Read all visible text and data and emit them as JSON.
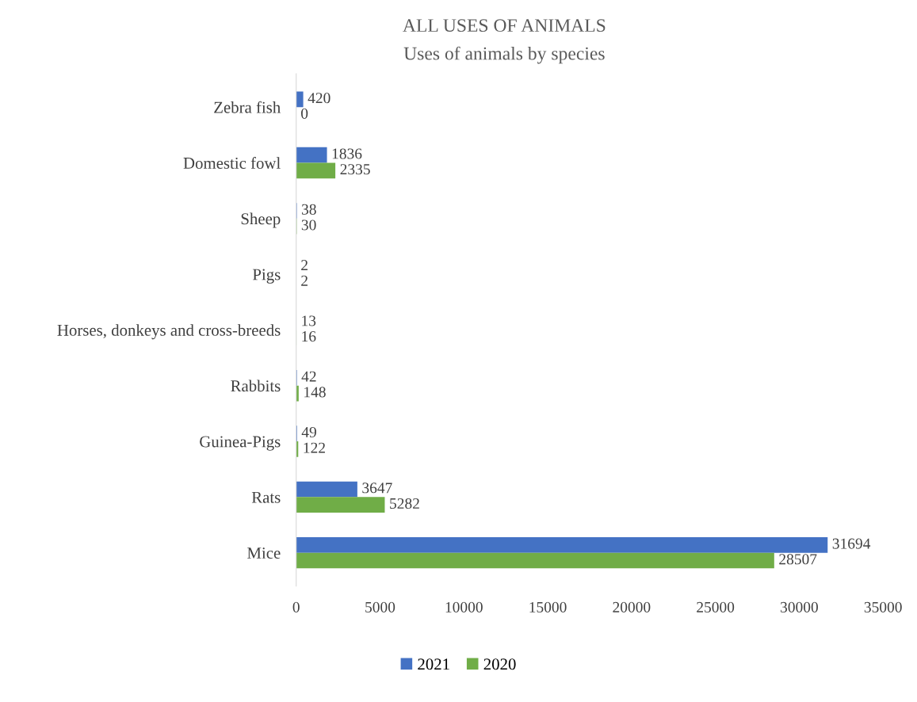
{
  "chart_data": {
    "type": "bar",
    "orientation": "horizontal",
    "title": "ALL USES OF ANIMALS",
    "subtitle": "Uses of animals by species",
    "categories": [
      "Zebra fish",
      "Domestic fowl",
      "Sheep",
      "Pigs",
      "Horses, donkeys and cross-breeds",
      "Rabbits",
      "Guinea-Pigs",
      "Rats",
      "Mice"
    ],
    "series": [
      {
        "name": "2021",
        "color": "#4472c4",
        "values": [
          420,
          1836,
          38,
          2,
          13,
          42,
          49,
          3647,
          31694
        ]
      },
      {
        "name": "2020",
        "color": "#70ad47",
        "values": [
          0,
          2335,
          30,
          2,
          16,
          148,
          122,
          5282,
          28507
        ]
      }
    ],
    "xlim": [
      0,
      35000
    ],
    "xticks": [
      0,
      5000,
      10000,
      15000,
      20000,
      25000,
      30000,
      35000
    ],
    "data_labels": true,
    "grid": false,
    "legend": "bottom"
  }
}
